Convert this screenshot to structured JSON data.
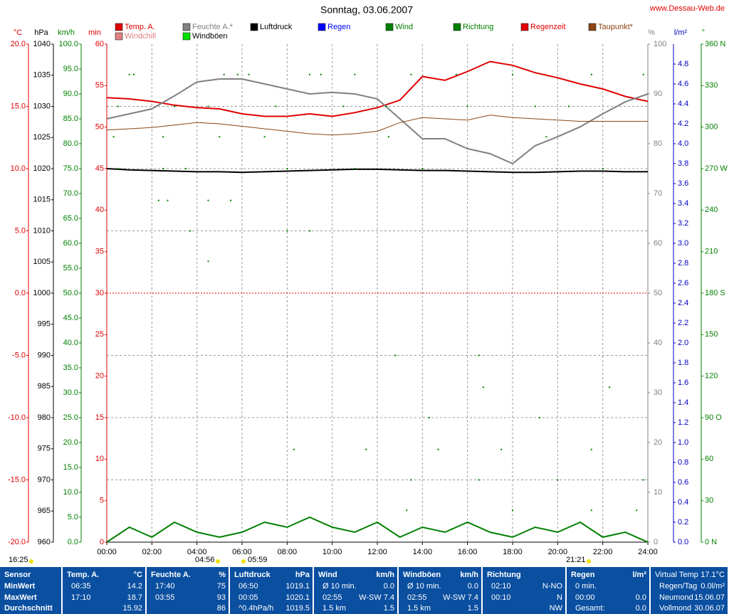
{
  "chart_data": {
    "type": "line",
    "title": "Sonntag, 03.06.2007",
    "source": "www.Dessau-Web.de",
    "grid": true,
    "xlim": [
      0,
      24
    ],
    "xticks": [
      {
        "value": 0,
        "label": "00:00"
      },
      {
        "value": 2,
        "label": "02:00"
      },
      {
        "value": 4,
        "label": "04:00"
      },
      {
        "value": 6,
        "label": "06:00"
      },
      {
        "value": 8,
        "label": "08:00"
      },
      {
        "value": 10,
        "label": "10:00"
      },
      {
        "value": 12,
        "label": "12:00"
      },
      {
        "value": 14,
        "label": "14:00"
      },
      {
        "value": 16,
        "label": "16:00"
      },
      {
        "value": 18,
        "label": "18:00"
      },
      {
        "value": 20,
        "label": "20:00"
      },
      {
        "value": 22,
        "label": "22:00"
      },
      {
        "value": 24,
        "label": "24:00"
      }
    ],
    "axes": [
      {
        "label": "°C",
        "color": "#e00000",
        "lim": [
          -20,
          20
        ],
        "ticks": [
          {
            "value": -20,
            "label": "-20.0"
          },
          {
            "value": -15,
            "label": "-15.0"
          },
          {
            "value": -10,
            "label": "-10.0"
          },
          {
            "value": -5,
            "label": "-5.0"
          },
          {
            "value": 0,
            "label": "0.0"
          },
          {
            "value": 5,
            "label": "5.0"
          },
          {
            "value": 10,
            "label": "10.0"
          },
          {
            "value": 15,
            "label": "15.0"
          },
          {
            "value": 20,
            "label": "20.0"
          }
        ]
      },
      {
        "label": "hPa",
        "color": "#000000",
        "lim": [
          960,
          1040
        ],
        "ticks": [
          960,
          965,
          970,
          975,
          980,
          985,
          990,
          995,
          1000,
          1005,
          1010,
          1015,
          1020,
          1025,
          1030,
          1035,
          1040
        ]
      },
      {
        "label": "km/h",
        "color": "#008000",
        "lim": [
          0,
          100
        ],
        "ticks": [
          {
            "value": 0,
            "label": "0.0"
          },
          {
            "value": 5,
            "label": "5.0"
          },
          {
            "value": 10,
            "label": "10.0"
          },
          {
            "value": 15,
            "label": "15.0"
          },
          {
            "value": 20,
            "label": "20.0"
          },
          {
            "value": 25,
            "label": "25.0"
          },
          {
            "value": 30,
            "label": "30.0"
          },
          {
            "value": 35,
            "label": "35.0"
          },
          {
            "value": 40,
            "label": "40.0"
          },
          {
            "value": 45,
            "label": "45.0"
          },
          {
            "value": 50,
            "label": "50.0"
          },
          {
            "value": 55,
            "label": "55.0"
          },
          {
            "value": 60,
            "label": "60.0"
          },
          {
            "value": 65,
            "label": "65.0"
          },
          {
            "value": 70,
            "label": "70.0"
          },
          {
            "value": 75,
            "label": "75.0"
          },
          {
            "value": 80,
            "label": "80.0"
          },
          {
            "value": 85,
            "label": "85.0"
          },
          {
            "value": 90,
            "label": "90.0"
          },
          {
            "value": 95,
            "label": "95.0"
          },
          {
            "value": 100,
            "label": "100.0"
          }
        ]
      },
      {
        "label": "min",
        "color": "#e00000",
        "lim": [
          0,
          60
        ],
        "ticks": [
          0,
          5,
          10,
          15,
          20,
          25,
          30,
          35,
          40,
          45,
          50,
          55,
          60
        ]
      },
      {
        "label": "%",
        "color": "#808080",
        "lim": [
          0,
          100
        ],
        "ticks": [
          0,
          10,
          20,
          30,
          40,
          50,
          60,
          70,
          80,
          90,
          100
        ]
      },
      {
        "label": "l/m²",
        "color": "#0000c0",
        "lim": [
          0,
          5
        ],
        "ticks": [
          {
            "value": 0,
            "label": "0.0"
          },
          {
            "value": 0.2,
            "label": "0.2"
          },
          {
            "value": 0.4,
            "label": "0.4"
          },
          {
            "value": 0.6,
            "label": "0.6"
          },
          {
            "value": 0.8,
            "label": "0.8"
          },
          {
            "value": 1,
            "label": "1.0"
          },
          {
            "value": 1.2,
            "label": "1.2"
          },
          {
            "value": 1.4,
            "label": "1.4"
          },
          {
            "value": 1.6,
            "label": "1.6"
          },
          {
            "value": 1.8,
            "label": "1.8"
          },
          {
            "value": 2,
            "label": "2.0"
          },
          {
            "value": 2.2,
            "label": "2.2"
          },
          {
            "value": 2.4,
            "label": "2.4"
          },
          {
            "value": 2.6,
            "label": "2.6"
          },
          {
            "value": 2.8,
            "label": "2.8"
          },
          {
            "value": 3,
            "label": "3.0"
          },
          {
            "value": 3.2,
            "label": "3.2"
          },
          {
            "value": 3.4,
            "label": "3.4"
          },
          {
            "value": 3.6,
            "label": "3.6"
          },
          {
            "value": 3.8,
            "label": "3.8"
          },
          {
            "value": 4,
            "label": "4.0"
          },
          {
            "value": 4.2,
            "label": "4.2"
          },
          {
            "value": 4.4,
            "label": "4.4"
          },
          {
            "value": 4.6,
            "label": "4.6"
          },
          {
            "value": 4.8,
            "label": "4.8"
          }
        ]
      },
      {
        "label": "°",
        "color": "#008000",
        "lim": [
          0,
          360
        ],
        "ticks": [
          {
            "value": 0,
            "label": "0 N"
          },
          30,
          60,
          {
            "value": 90,
            "label": "90 O"
          },
          120,
          150,
          {
            "value": 180,
            "label": "180 S"
          },
          210,
          240,
          {
            "value": 270,
            "label": "270 W"
          },
          300,
          330,
          {
            "value": 360,
            "label": "360 N"
          }
        ]
      }
    ],
    "x": [
      0,
      1,
      2,
      3,
      4,
      5,
      6,
      7,
      8,
      9,
      10,
      11,
      12,
      13,
      14,
      15,
      16,
      17,
      18,
      19,
      20,
      21,
      22,
      23,
      24
    ],
    "series": [
      {
        "name": "Temp. A.",
        "color": "#e00000",
        "axis": "°C",
        "values": [
          15.7,
          15.6,
          15.4,
          15.1,
          14.9,
          14.8,
          14.4,
          14.2,
          14.2,
          14.4,
          14.2,
          14.5,
          14.9,
          15.5,
          17.4,
          17.1,
          17.8,
          18.6,
          18.3,
          17.7,
          17.3,
          16.8,
          16.4,
          15.8,
          15.4
        ]
      },
      {
        "name": "Windchill",
        "color": "#e08080",
        "axis": "°C",
        "values": [
          null,
          null,
          null,
          null,
          null,
          null,
          null,
          null,
          null,
          null,
          null,
          null,
          null,
          null,
          null,
          null,
          null,
          null,
          null,
          null,
          null,
          null,
          null,
          null,
          null
        ]
      },
      {
        "name": "Feuchte A.*",
        "color": "#808080",
        "axis": "%",
        "values": [
          85,
          86,
          87,
          89.6,
          92.4,
          93,
          93,
          92,
          91,
          90,
          90.3,
          90,
          89,
          85,
          81,
          81,
          79,
          78,
          76,
          79.6,
          81.4,
          83.4,
          86,
          88.4,
          90
        ]
      },
      {
        "name": "Windböen",
        "color": "#00e000",
        "axis": "km/h",
        "values": [
          null,
          null,
          null,
          null,
          null,
          null,
          null,
          null,
          null,
          null,
          null,
          null,
          null,
          null,
          null,
          null,
          null,
          null,
          null,
          null,
          null,
          null,
          null,
          null,
          null
        ]
      },
      {
        "name": "Luftdruck",
        "color": "#000000",
        "axis": "hPa",
        "values": [
          1020.0,
          1019.8,
          1019.7,
          1019.6,
          1019.5,
          1019.5,
          1019.4,
          1019.5,
          1019.6,
          1019.7,
          1019.8,
          1019.9,
          1019.9,
          1019.8,
          1019.7,
          1019.7,
          1019.6,
          1019.5,
          1019.4,
          1019.4,
          1019.5,
          1019.6,
          1019.6,
          1019.5,
          1019.5
        ]
      },
      {
        "name": "Regen",
        "color": "#0000ff",
        "axis": "l/m²",
        "values": [
          null,
          null,
          null,
          null,
          null,
          null,
          null,
          null,
          null,
          null,
          null,
          null,
          null,
          null,
          null,
          null,
          null,
          null,
          null,
          null,
          null,
          null,
          null,
          null,
          null
        ]
      },
      {
        "name": "Wind",
        "color": "#008000",
        "axis": "km/h",
        "values": [
          0,
          3,
          1,
          4,
          2,
          1,
          2,
          4,
          3,
          5,
          3,
          2,
          4,
          1,
          3,
          2,
          4,
          2,
          1,
          3,
          2,
          4,
          1,
          2,
          0
        ]
      },
      {
        "name": "Richtung",
        "color": "#008000",
        "axis": "°",
        "style": "dots",
        "x": [
          1,
          1.2,
          5.2,
          5.8,
          6.3,
          9,
          9.5,
          11,
          13.5,
          15.5,
          18,
          21.5,
          23.8,
          0.5,
          3,
          4.5,
          7.5,
          10.5,
          12.4,
          16,
          19,
          20.5,
          0.3,
          2.5,
          5,
          7,
          12.5,
          19.5,
          0.5,
          2.5,
          3.5,
          8,
          11,
          14,
          22,
          2.3,
          2.7,
          4.5,
          5.5,
          3.7,
          8,
          9,
          4.5,
          12.8,
          16.5,
          16.7,
          22.3,
          14.3,
          19.2,
          8.3,
          11.5,
          14.7,
          17.5,
          21.5,
          13.5,
          16.5,
          20,
          23.8,
          13.3,
          18,
          21.5,
          23.5
        ],
        "values": [
          338,
          338,
          338,
          338,
          338,
          338,
          338,
          338,
          338,
          338,
          338,
          338,
          338,
          315,
          315,
          315,
          315,
          315,
          315,
          315,
          315,
          315,
          293,
          293,
          293,
          293,
          293,
          293,
          270,
          270,
          270,
          270,
          270,
          270,
          270,
          247,
          247,
          247,
          247,
          225,
          225,
          225,
          203,
          135,
          135,
          112,
          112,
          90,
          90,
          67,
          67,
          67,
          67,
          67,
          45,
          45,
          45,
          45,
          23,
          23,
          23,
          23
        ]
      },
      {
        "name": "Regenzeit",
        "color": "#e00000",
        "axis": "min",
        "values": [
          null,
          null,
          null,
          null,
          null,
          null,
          null,
          null,
          null,
          null,
          null,
          null,
          null,
          null,
          null,
          null,
          null,
          null,
          null,
          null,
          null,
          null,
          null,
          null,
          null
        ]
      },
      {
        "name": "Taupunkt*",
        "color": "#8b4513",
        "axis": "°C",
        "values": [
          13.1,
          13.2,
          13.3,
          13.5,
          13.7,
          13.6,
          13.4,
          13.2,
          13.0,
          12.8,
          12.7,
          12.8,
          13.0,
          13.7,
          14.1,
          14.0,
          13.9,
          14.3,
          14.1,
          14.0,
          13.9,
          13.8,
          13.8,
          13.8,
          13.8
        ]
      }
    ]
  },
  "sun_moon": [
    "16:25",
    "04:56",
    "05:59",
    "21:21"
  ],
  "table": {
    "columns": [
      {
        "title": "Sensor",
        "rows": [
          {
            "left": "MinWert"
          },
          {
            "left": "MaxWert"
          },
          {
            "left": "Durchschnitt"
          }
        ]
      },
      {
        "title": "Temp. A.",
        "unit": "°C",
        "rows": [
          {
            "left": "06:35",
            "right": "14.2"
          },
          {
            "left": "17:10",
            "right": "18.7"
          },
          {
            "right": "15.92"
          }
        ]
      },
      {
        "title": "Feuchte A.",
        "unit": "%",
        "rows": [
          {
            "left": "17:40",
            "right": "75"
          },
          {
            "left": "03:55",
            "right": "93"
          },
          {
            "right": "86"
          }
        ]
      },
      {
        "title": "Luftdruck",
        "unit": "hPa",
        "rows": [
          {
            "left": "06:50",
            "right": "1019.1"
          },
          {
            "left": "00:05",
            "right": "1020.1"
          },
          {
            "left": "^0.4hPa/h",
            "right": "1019.5"
          }
        ]
      },
      {
        "title": "Wind",
        "unit": "km/h",
        "rows": [
          {
            "left": "Ø 10 min.",
            "right": "0.0"
          },
          {
            "left": "02:55",
            "right": "W-SW 7.4"
          },
          {
            "left": "1.5 km",
            "right": "1.5"
          }
        ]
      },
      {
        "title": "Windböen",
        "unit": "km/h",
        "rows": [
          {
            "left": "Ø 10 min.",
            "right": "0.0"
          },
          {
            "left": "02:55",
            "right": "W-SW 7.4"
          },
          {
            "left": "1.5 km",
            "right": "1.5"
          }
        ]
      },
      {
        "title": "Richtung",
        "rows": [
          {
            "left": "02:10",
            "right": "N-NO"
          },
          {
            "left": "00:10",
            "right": "N"
          },
          {
            "right": "NW"
          }
        ]
      },
      {
        "title": "Regen",
        "unit": "l/m²",
        "rows": [
          {
            "left": "0 min."
          },
          {
            "left": "00:00",
            "right": "0.0"
          },
          {
            "left": "Gesamt:",
            "right": "0.0"
          }
        ]
      },
      {
        "title": "Virtual Temp",
        "unit": "17.1°C",
        "rows": [
          {
            "left": "Regen/Tag",
            "right": "0.0l/m²"
          },
          {
            "left": "Neumond",
            "right": "15.06.07"
          },
          {
            "left": "Vollmond",
            "right": "30.06.07"
          }
        ]
      }
    ]
  }
}
